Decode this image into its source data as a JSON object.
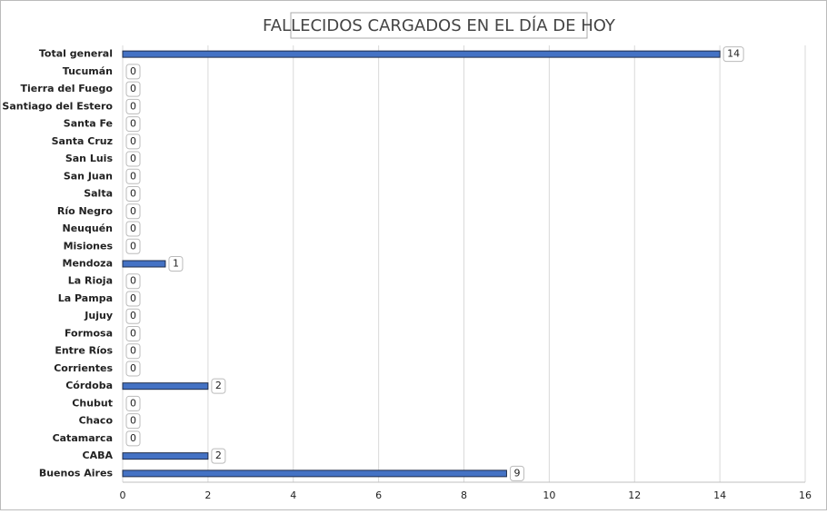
{
  "chart_data": {
    "type": "hbar",
    "title": "FALLECIDOS CARGADOS EN EL DÍA DE HOY",
    "categories": [
      "Total general",
      "Tucumán",
      "Tierra del Fuego",
      "Santiago del Estero",
      "Santa Fe",
      "Santa Cruz",
      "San Luis",
      "San Juan",
      "Salta",
      "Río Negro",
      "Neuquén",
      "Misiones",
      "Mendoza",
      "La Rioja",
      "La Pampa",
      "Jujuy",
      "Formosa",
      "Entre Ríos",
      "Corrientes",
      "Córdoba",
      "Chubut",
      "Chaco",
      "Catamarca",
      "CABA",
      "Buenos Aires"
    ],
    "values": [
      14,
      0,
      0,
      0,
      0,
      0,
      0,
      0,
      0,
      0,
      0,
      0,
      1,
      0,
      0,
      0,
      0,
      0,
      0,
      2,
      0,
      0,
      0,
      2,
      9
    ],
    "color": "#4472c4",
    "xlim": [
      0,
      16
    ],
    "xticks": [
      0,
      2,
      4,
      6,
      8,
      10,
      12,
      14,
      16
    ],
    "grid": true
  }
}
